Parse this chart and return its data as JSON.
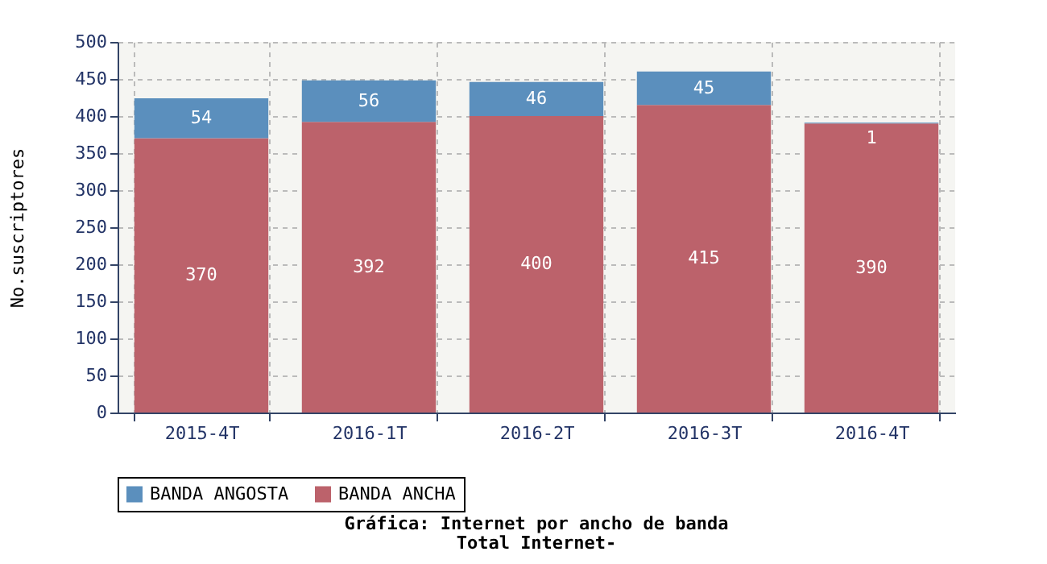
{
  "chart_data": {
    "type": "bar",
    "title": "Gráfica: Internet por ancho de banda",
    "subtitle": "Total Internet-",
    "ylabel": "No.suscriptores",
    "categories": [
      "2015-4T",
      "2016-1T",
      "2016-2T",
      "2016-3T",
      "2016-4T"
    ],
    "series": [
      {
        "name": "BANDA ANCHA",
        "color": "#bc626b",
        "values": [
          370,
          392,
          400,
          415,
          390
        ]
      },
      {
        "name": "BANDA ANGOSTA",
        "color": "#5b8fbd",
        "values": [
          54,
          56,
          46,
          45,
          1
        ]
      }
    ],
    "stacked": true,
    "data_labels": true,
    "ylim": [
      0,
      500
    ],
    "yticks": [
      0,
      50,
      100,
      150,
      200,
      250,
      300,
      350,
      400,
      450,
      500
    ],
    "grid": true,
    "legend": "bottom"
  }
}
